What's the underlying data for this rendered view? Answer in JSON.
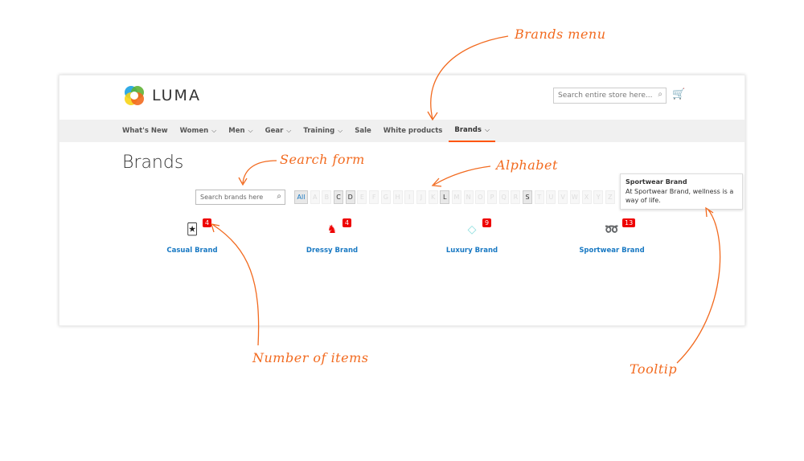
{
  "header": {
    "logo_text": "LUMA",
    "search_placeholder": "Search entire store here...",
    "search_icon": "magnifier-icon",
    "cart_icon": "cart-icon"
  },
  "nav": {
    "items": [
      {
        "label": "What's New",
        "dropdown": false
      },
      {
        "label": "Women",
        "dropdown": true
      },
      {
        "label": "Men",
        "dropdown": true
      },
      {
        "label": "Gear",
        "dropdown": true
      },
      {
        "label": "Training",
        "dropdown": true
      },
      {
        "label": "Sale",
        "dropdown": false
      },
      {
        "label": "White products",
        "dropdown": false
      },
      {
        "label": "Brands",
        "dropdown": true,
        "active": true
      }
    ]
  },
  "page_title": "Brands",
  "brand_search": {
    "placeholder": "Search brands here"
  },
  "alphabet": {
    "all": "All",
    "letters": [
      "A",
      "B",
      "C",
      "D",
      "E",
      "F",
      "G",
      "H",
      "I",
      "J",
      "K",
      "L",
      "M",
      "N",
      "O",
      "P",
      "Q",
      "R",
      "S",
      "T",
      "U",
      "V",
      "W",
      "X",
      "Y",
      "Z"
    ],
    "enabled": [
      "C",
      "D",
      "L",
      "S"
    ]
  },
  "tooltip": {
    "title": "Sportwear Brand",
    "text": "At Sportwear Brand, wellness is a way of life."
  },
  "brands": [
    {
      "name": "Casual Brand",
      "count": "4"
    },
    {
      "name": "Dressy Brand",
      "count": "4"
    },
    {
      "name": "Luxury Brand",
      "count": "9"
    },
    {
      "name": "Sportwear Brand",
      "count": "13"
    }
  ],
  "annotations": {
    "brands_menu": "Brands menu",
    "search_form": "Search form",
    "alphabet": "Alphabet",
    "number_of_items": "Number of items",
    "tooltip": "Tooltip"
  },
  "colors": {
    "accent": "#ff5501",
    "link": "#1979c3",
    "badge": "#e00000",
    "annotation": "#f26a1f"
  }
}
